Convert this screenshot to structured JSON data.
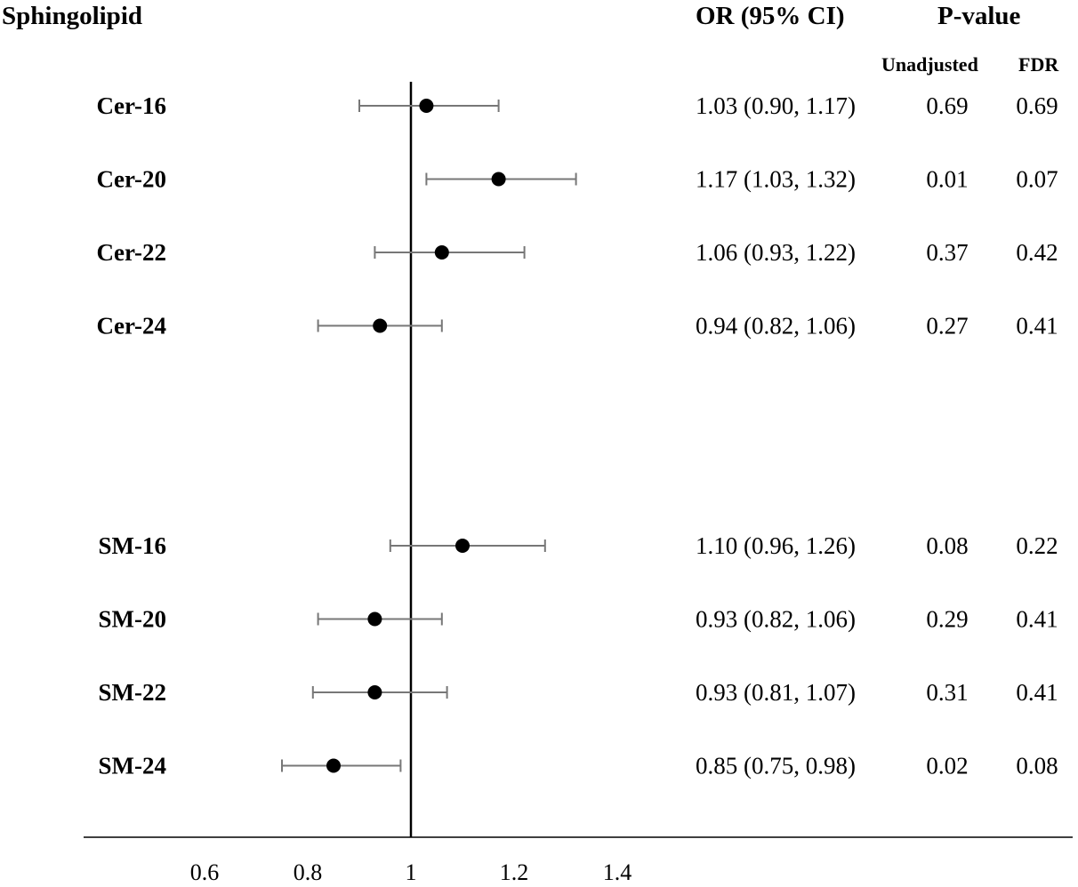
{
  "headers": {
    "sphingolipid": "Sphingolipid",
    "or_ci": "OR (95% CI)",
    "p_value": "P-value",
    "unadjusted": "Unadjusted",
    "fdr": "FDR"
  },
  "chart_data": {
    "type": "forest",
    "title": "",
    "xlabel": "",
    "reference_line": 1,
    "x_ticks": [
      "0.6",
      "0.8",
      "1",
      "1.2",
      "1.4"
    ],
    "x_tick_values": [
      0.6,
      0.8,
      1.0,
      1.2,
      1.4
    ],
    "rows": [
      {
        "label": "Cer-16",
        "or": 1.03,
        "lower": 0.9,
        "upper": 1.17,
        "or_text": "1.03 (0.90, 1.17)",
        "p_unadjusted": "0.69",
        "p_fdr": "0.69",
        "group": 0
      },
      {
        "label": "Cer-20",
        "or": 1.17,
        "lower": 1.03,
        "upper": 1.32,
        "or_text": "1.17 (1.03, 1.32)",
        "p_unadjusted": "0.01",
        "p_fdr": "0.07",
        "group": 0
      },
      {
        "label": "Cer-22",
        "or": 1.06,
        "lower": 0.93,
        "upper": 1.22,
        "or_text": "1.06 (0.93, 1.22)",
        "p_unadjusted": "0.37",
        "p_fdr": "0.42",
        "group": 0
      },
      {
        "label": "Cer-24",
        "or": 0.94,
        "lower": 0.82,
        "upper": 1.06,
        "or_text": "0.94 (0.82, 1.06)",
        "p_unadjusted": "0.27",
        "p_fdr": "0.41",
        "group": 0
      },
      {
        "label": "SM-16",
        "or": 1.1,
        "lower": 0.96,
        "upper": 1.26,
        "or_text": "1.10 (0.96, 1.26)",
        "p_unadjusted": "0.08",
        "p_fdr": "0.22",
        "group": 1
      },
      {
        "label": "SM-20",
        "or": 0.93,
        "lower": 0.82,
        "upper": 1.06,
        "or_text": "0.93 (0.82, 1.06)",
        "p_unadjusted": "0.29",
        "p_fdr": "0.41",
        "group": 1
      },
      {
        "label": "SM-22",
        "or": 0.93,
        "lower": 0.81,
        "upper": 1.07,
        "or_text": "0.93 (0.81, 1.07)",
        "p_unadjusted": "0.31",
        "p_fdr": "0.41",
        "group": 1
      },
      {
        "label": "SM-24",
        "or": 0.85,
        "lower": 0.75,
        "upper": 0.98,
        "or_text": "0.85 (0.75, 0.98)",
        "p_unadjusted": "0.02",
        "p_fdr": "0.08",
        "group": 1
      }
    ]
  }
}
